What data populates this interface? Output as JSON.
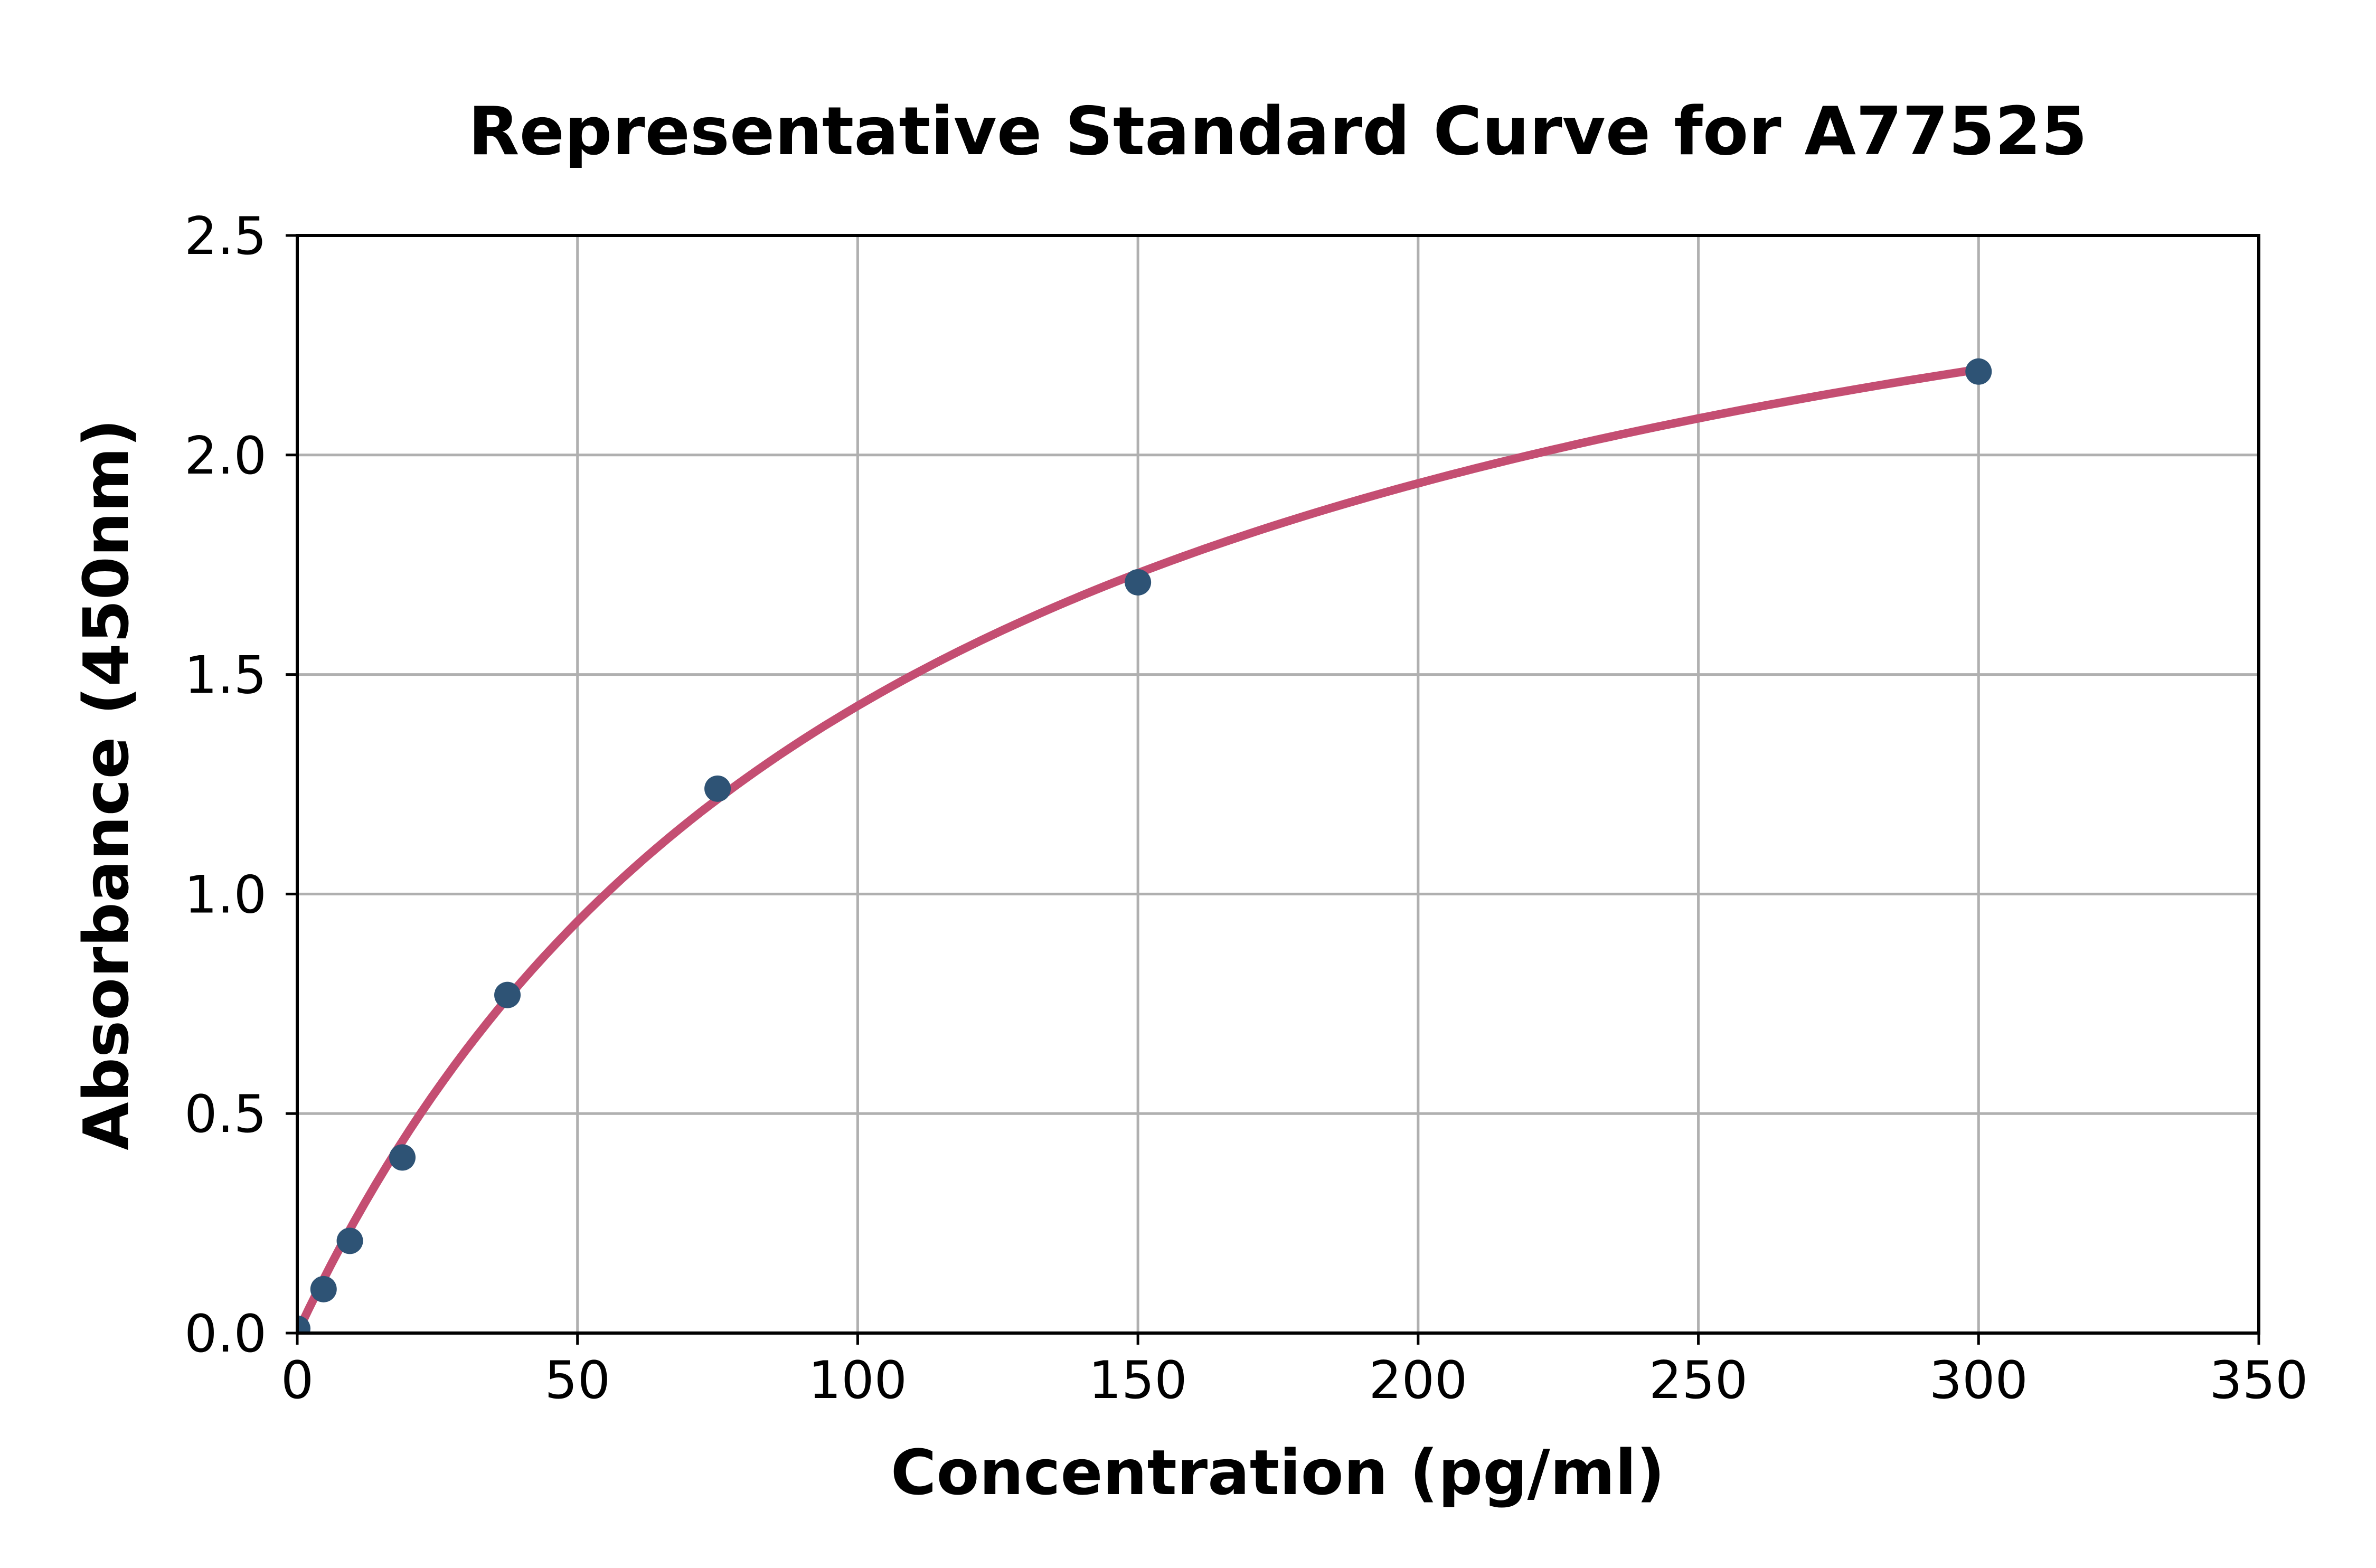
{
  "page": {
    "background": "#ffffff"
  },
  "chart_data": {
    "type": "scatter",
    "title": "Representative Standard Curve for A77525",
    "xlabel": "Concentration (pg/ml)",
    "ylabel": "Absorbance (450nm)",
    "xlim": [
      0,
      350
    ],
    "ylim": [
      0,
      2.5
    ],
    "grid": true,
    "legend": "none",
    "xticks": {
      "values": [
        0,
        50,
        100,
        150,
        200,
        250,
        300,
        350
      ],
      "labels": [
        "0",
        "50",
        "100",
        "150",
        "200",
        "250",
        "300",
        "350"
      ]
    },
    "yticks": {
      "values": [
        0,
        0.5,
        1.0,
        1.5,
        2.0,
        2.5
      ],
      "labels": [
        "0.0",
        "0.5",
        "1.0",
        "1.5",
        "2.0",
        "2.5"
      ]
    },
    "series": [
      {
        "name": "standard-points",
        "type": "scatter",
        "marker": "circle",
        "points": [
          {
            "x": 0,
            "y": 0.01
          },
          {
            "x": 4.69,
            "y": 0.1
          },
          {
            "x": 9.38,
            "y": 0.21
          },
          {
            "x": 18.75,
            "y": 0.4
          },
          {
            "x": 37.5,
            "y": 0.77
          },
          {
            "x": 75,
            "y": 1.24
          },
          {
            "x": 150,
            "y": 1.71
          },
          {
            "x": 300,
            "y": 2.19
          }
        ]
      },
      {
        "name": "fit-curve",
        "type": "line",
        "model": "saturation",
        "vmax": 3.0,
        "k": 110,
        "x_range": [
          0,
          300
        ]
      }
    ],
    "colors": {
      "points": "#2e5375",
      "curve": "#c44e72",
      "grid": "#b0b0b0",
      "axes": "#000000",
      "background": "#ffffff"
    }
  }
}
